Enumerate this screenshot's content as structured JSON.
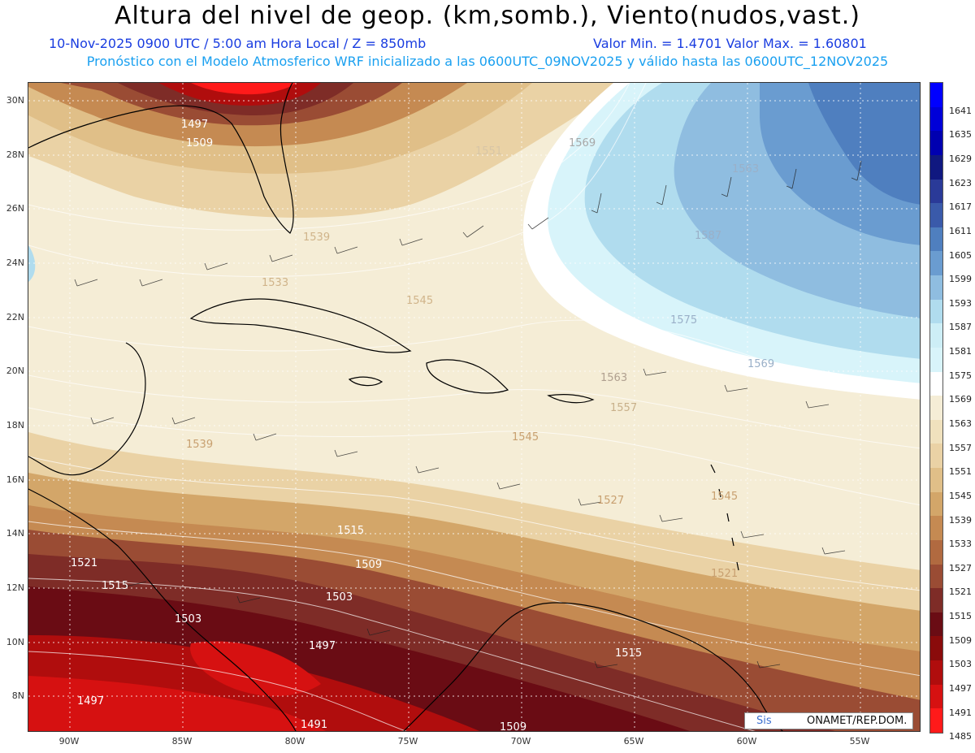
{
  "header": {
    "title": "Altura del nivel de geop. (km,somb.), Viento(nudos,vast.)",
    "subtitle_left": "10-Nov-2025  0900 UTC / 5:00 am Hora Local / Z = 850mb",
    "subtitle_right": "Valor Min. = 1.4701  Valor Max. = 1.60801",
    "subtitle_line2": "Pronóstico con el Modelo Atmosferico WRF inicializado a las 0600UTC_09NOV2025 y válido hasta las  0600UTC_12NOV2025"
  },
  "map": {
    "lat_labels": [
      "30N",
      "28N",
      "26N",
      "24N",
      "22N",
      "20N",
      "18N",
      "16N",
      "14N",
      "12N",
      "10N",
      "8N"
    ],
    "lon_labels": [
      "90W",
      "85W",
      "80W",
      "75W",
      "70W",
      "65W",
      "60W",
      "55W"
    ],
    "contour_labels": [
      "1497",
      "1509",
      "1551",
      "1569",
      "1563",
      "1539",
      "1533",
      "1545",
      "1587",
      "1575",
      "1569",
      "1563",
      "1557",
      "1545",
      "1539",
      "1521",
      "1515",
      "1509",
      "1503",
      "1497",
      "1491",
      "1515",
      "1521",
      "1545",
      "1509",
      "1515",
      "1527",
      "1503",
      "1497"
    ]
  },
  "colorbar": {
    "labels": [
      "1641",
      "1635",
      "1629",
      "1623",
      "1617",
      "1611",
      "1605",
      "1599",
      "1593",
      "1587",
      "1581",
      "1575",
      "1569",
      "1563",
      "1557",
      "1551",
      "1545",
      "1539",
      "1533",
      "1527",
      "1521",
      "1515",
      "1509",
      "1503",
      "1497",
      "1491",
      "1485"
    ],
    "colors": [
      "#0000ff",
      "#0000d8",
      "#0000b0",
      "#101880",
      "#2a3a98",
      "#3a5aaa",
      "#4f7fbf",
      "#6a9cd0",
      "#8fbde0",
      "#b0dcee",
      "#cdeef6",
      "#d8f4fa",
      "#ffffff",
      "#f5edd6",
      "#f0e1bd",
      "#ead2a5",
      "#e0bf88",
      "#d3a669",
      "#c58a52",
      "#b16a40",
      "#9a4c34",
      "#7e2c27",
      "#6a0c14",
      "#8a0b0b",
      "#b00d0d",
      "#d61111",
      "#ff1a1a"
    ]
  },
  "credit": {
    "left": "Sis",
    "right": "ONAMET/REP.DOM."
  }
}
